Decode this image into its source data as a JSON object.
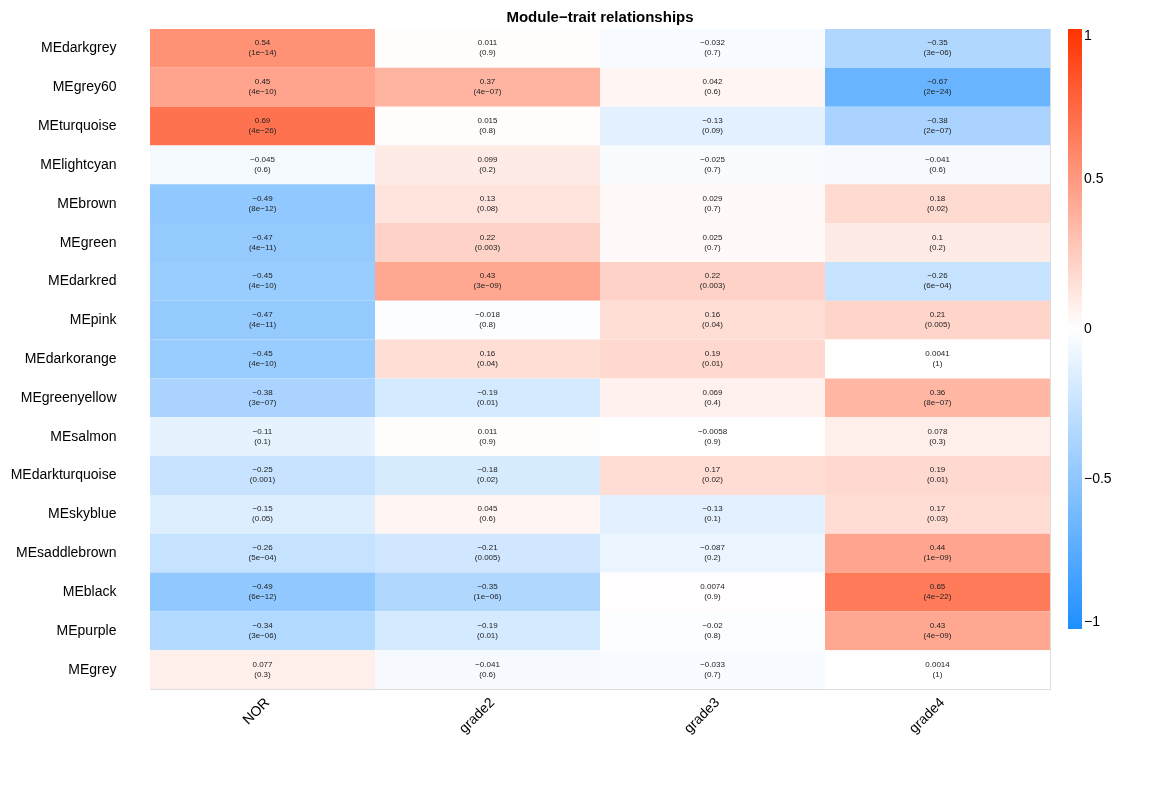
{
  "chart_data": {
    "type": "heatmap",
    "title": "Module−trait relationships",
    "categories": [
      "NOR",
      "grade2",
      "grade3",
      "grade4"
    ],
    "y_categories": [
      "MEdarkgrey",
      "MEgrey60",
      "MEturquoise",
      "MElightcyan",
      "MEbrown",
      "MEgreen",
      "MEdarkred",
      "MEpink",
      "MEdarkorange",
      "MEgreenyellow",
      "MEsalmon",
      "MEdarkturquoise",
      "MEskyblue",
      "MEsaddlebrown",
      "MEblack",
      "MEpurple",
      "MEgrey"
    ],
    "cells": [
      [
        0.54,
        0.011,
        -0.032,
        -0.35
      ],
      [
        0.45,
        0.37,
        0.042,
        -0.67
      ],
      [
        0.69,
        0.015,
        -0.13,
        -0.38
      ],
      [
        -0.045,
        0.099,
        -0.025,
        -0.041
      ],
      [
        -0.49,
        0.13,
        0.029,
        0.18
      ],
      [
        -0.47,
        0.22,
        0.025,
        0.1
      ],
      [
        -0.45,
        0.43,
        0.22,
        -0.26
      ],
      [
        -0.47,
        -0.018,
        0.16,
        0.21
      ],
      [
        -0.45,
        0.16,
        0.19,
        0.0041
      ],
      [
        -0.38,
        -0.19,
        0.069,
        0.36
      ],
      [
        -0.11,
        0.011,
        -0.0058,
        0.078
      ],
      [
        -0.25,
        -0.18,
        0.17,
        0.19
      ],
      [
        -0.15,
        0.045,
        -0.13,
        0.17
      ],
      [
        -0.26,
        -0.21,
        -0.087,
        0.44
      ],
      [
        -0.49,
        -0.35,
        0.0074,
        0.65
      ],
      [
        -0.34,
        -0.19,
        -0.02,
        0.43
      ],
      [
        0.077,
        -0.041,
        -0.033,
        0.0014
      ]
    ],
    "cell_labels": [
      [
        "0.54\n(1e−14)",
        "0.011\n(0.9)",
        "−0.032\n(0.7)",
        "−0.35\n(3e−06)"
      ],
      [
        "0.45\n(4e−10)",
        "0.37\n(4e−07)",
        "0.042\n(0.6)",
        "−0.67\n(2e−24)"
      ],
      [
        "0.69\n(4e−26)",
        "0.015\n(0.8)",
        "−0.13\n(0.09)",
        "−0.38\n(2e−07)"
      ],
      [
        "−0.045\n(0.6)",
        "0.099\n(0.2)",
        "−0.025\n(0.7)",
        "−0.041\n(0.6)"
      ],
      [
        "−0.49\n(8e−12)",
        "0.13\n(0.08)",
        "0.029\n(0.7)",
        "0.18\n(0.02)"
      ],
      [
        "−0.47\n(4e−11)",
        "0.22\n(0.003)",
        "0.025\n(0.7)",
        "0.1\n(0.2)"
      ],
      [
        "−0.45\n(4e−10)",
        "0.43\n(3e−09)",
        "0.22\n(0.003)",
        "−0.26\n(6e−04)"
      ],
      [
        "−0.47\n(4e−11)",
        "−0.018\n(0.8)",
        "0.16\n(0.04)",
        "0.21\n(0.005)"
      ],
      [
        "−0.45\n(4e−10)",
        "0.16\n(0.04)",
        "0.19\n(0.01)",
        "0.0041\n(1)"
      ],
      [
        "−0.38\n(3e−07)",
        "−0.19\n(0.01)",
        "0.069\n(0.4)",
        "0.36\n(8e−07)"
      ],
      [
        "−0.11\n(0.1)",
        "0.011\n(0.9)",
        "−0.0058\n(0.9)",
        "0.078\n(0.3)"
      ],
      [
        "−0.25\n(0.001)",
        "−0.18\n(0.02)",
        "0.17\n(0.02)",
        "0.19\n(0.01)"
      ],
      [
        "−0.15\n(0.05)",
        "0.045\n(0.6)",
        "−0.13\n(0.1)",
        "0.17\n(0.03)"
      ],
      [
        "−0.26\n(5e−04)",
        "−0.21\n(0.005)",
        "−0.087\n(0.2)",
        "0.44\n(1e−09)"
      ],
      [
        "−0.49\n(6e−12)",
        "−0.35\n(1e−06)",
        "0.0074\n(0.9)",
        "0.65\n(4e−22)"
      ],
      [
        "−0.34\n(3e−06)",
        "−0.19\n(0.01)",
        "−0.02\n(0.8)",
        "0.43\n(4e−09)"
      ],
      [
        "0.077\n(0.3)",
        "−0.041\n(0.6)",
        "−0.033\n(0.7)",
        "0.0014\n(1)"
      ]
    ],
    "clim": [
      -1,
      1
    ],
    "cticks": [
      {
        "value": -1,
        "label": "−1"
      },
      {
        "value": -0.5,
        "label": "−0.5"
      },
      0,
      0.5,
      1
    ]
  }
}
